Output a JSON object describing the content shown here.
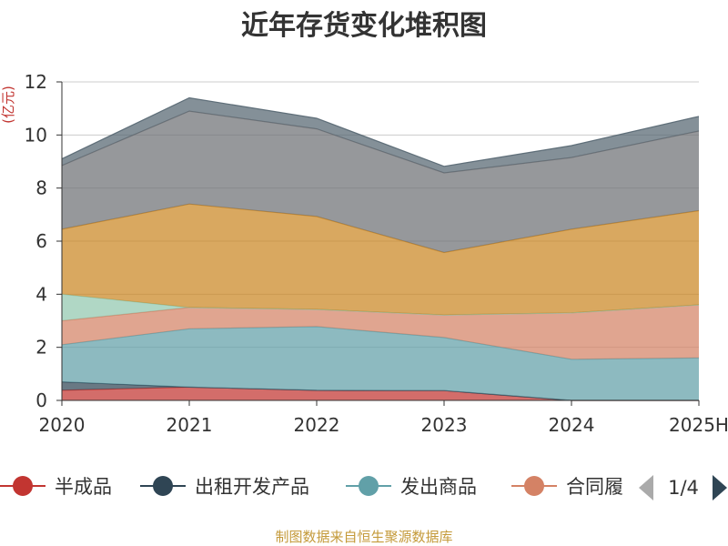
{
  "chart_data": {
    "type": "area",
    "stacked": true,
    "title": "近年存货变化堆积图",
    "ylabel": "(亿元)",
    "xlabel": "",
    "categories": [
      "2020",
      "2021",
      "2022",
      "2023",
      "2024",
      "2025H"
    ],
    "ylim": [
      0,
      12
    ],
    "yticks": [
      0,
      2,
      4,
      6,
      8,
      10,
      12
    ],
    "grid": true,
    "series": [
      {
        "name": "半成品",
        "color": "#c23531",
        "values": [
          0.38,
          0.5,
          0.38,
          0.37,
          0.0,
          0.0
        ]
      },
      {
        "name": "出租开发产品",
        "color": "#2f4554",
        "values": [
          0.32,
          0.0,
          0.0,
          0.0,
          0.0,
          0.0
        ]
      },
      {
        "name": "发出商品",
        "color": "#61a0a8",
        "values": [
          1.4,
          2.2,
          2.4,
          2.0,
          1.55,
          1.6
        ]
      },
      {
        "name": "合同履约成本",
        "color": "#d48265",
        "values": [
          0.9,
          0.8,
          0.65,
          0.85,
          1.75,
          2.0
        ]
      },
      {
        "name": "",
        "color": "#91c7ae",
        "values": [
          1.0,
          0.0,
          0.0,
          0.0,
          0.0,
          0.0
        ]
      },
      {
        "name": "",
        "color": "#ca8622",
        "values": [
          2.45,
          3.9,
          3.5,
          2.35,
          3.15,
          3.55
        ]
      },
      {
        "name": "",
        "color": "#6e7074",
        "values": [
          2.4,
          3.5,
          3.3,
          3.0,
          2.7,
          3.0
        ]
      },
      {
        "name": "",
        "color": "#546570",
        "values": [
          0.25,
          0.5,
          0.4,
          0.25,
          0.45,
          0.55
        ]
      }
    ],
    "legend_position": "bottom",
    "legend_visible": [
      "半成品",
      "出租开发产品",
      "发出商品",
      "合同履"
    ],
    "legend_page": "1/4"
  },
  "source_text": "制图数据来自恒生聚源数据库"
}
